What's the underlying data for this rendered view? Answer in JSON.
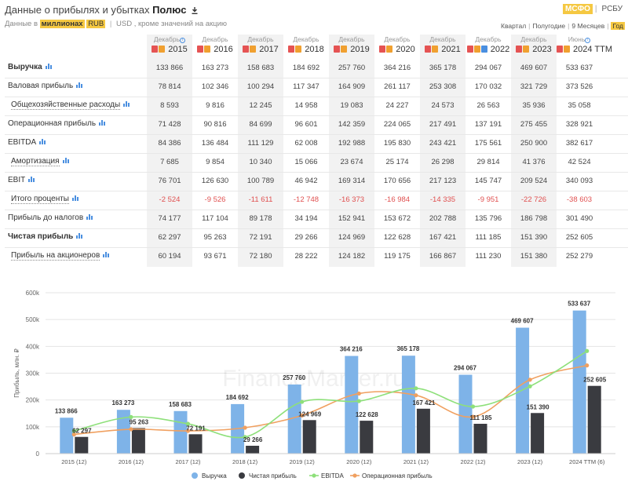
{
  "header": {
    "title_prefix": "Данные о прибылях и убытках",
    "company": "Полюс",
    "sub_prefix": "Данные в",
    "units": "миллионах",
    "currency": "RUB",
    "currency_alt": "USD",
    "sub_suffix": ", кроме значений на акцию"
  },
  "standards": {
    "active": "МСФО",
    "inactive": "РСБУ"
  },
  "periods": {
    "quarter": "Квартал",
    "half": "Полугодие",
    "nine": "9 Месяцев",
    "year": "Год"
  },
  "columns": [
    {
      "month": "Декабрь",
      "year": "2015",
      "info": true
    },
    {
      "month": "Декабрь",
      "year": "2016"
    },
    {
      "month": "Декабрь",
      "year": "2017"
    },
    {
      "month": "Декабрь",
      "year": "2018"
    },
    {
      "month": "Декабрь",
      "year": "2019"
    },
    {
      "month": "Декабрь",
      "year": "2020"
    },
    {
      "month": "Декабрь",
      "year": "2021"
    },
    {
      "month": "Декабрь",
      "year": "2022"
    },
    {
      "month": "Декабрь",
      "year": "2023"
    },
    {
      "month": "Июнь",
      "year": "2024 TTM",
      "info": true
    }
  ],
  "rows": [
    {
      "label": "Выручка",
      "bold": true,
      "values": [
        "133 866",
        "163 273",
        "158 683",
        "184 692",
        "257 760",
        "364 216",
        "365 178",
        "294 067",
        "469 607",
        "533 637"
      ]
    },
    {
      "label": "Валовая прибыль",
      "values": [
        "78 814",
        "102 346",
        "100 294",
        "117 347",
        "164 909",
        "261 117",
        "253 308",
        "170 032",
        "321 729",
        "373 526"
      ]
    },
    {
      "label": "Общехозяйственные расходы",
      "dotted": true,
      "values": [
        "8 593",
        "9 816",
        "12 245",
        "14 958",
        "19 083",
        "24 227",
        "24 573",
        "26 563",
        "35 936",
        "35 058"
      ]
    },
    {
      "label": "Операционная прибыль",
      "values": [
        "71 428",
        "90 816",
        "84 699",
        "96 601",
        "142 359",
        "224 065",
        "217 491",
        "137 191",
        "275 455",
        "328 921"
      ]
    },
    {
      "label": "EBITDA",
      "values": [
        "84 386",
        "136 484",
        "111 129",
        "62 008",
        "192 988",
        "195 830",
        "243 421",
        "175 561",
        "250 900",
        "382 617"
      ]
    },
    {
      "label": "Амортизация",
      "dotted": true,
      "values": [
        "7 685",
        "9 854",
        "10 340",
        "15 066",
        "23 674",
        "25 174",
        "26 298",
        "29 814",
        "41 376",
        "42 524"
      ]
    },
    {
      "label": "EBIT",
      "values": [
        "76 701",
        "126 630",
        "100 789",
        "46 942",
        "169 314",
        "170 656",
        "217 123",
        "145 747",
        "209 524",
        "340 093"
      ]
    },
    {
      "label": "Итого проценты",
      "dotted": true,
      "neg": true,
      "values": [
        "-2 524",
        "-9 526",
        "-11 611",
        "-12 748",
        "-16 373",
        "-16 984",
        "-14 335",
        "-9 951",
        "-22 726",
        "-38 603"
      ]
    },
    {
      "label": "Прибыль до налогов",
      "values": [
        "74 177",
        "117 104",
        "89 178",
        "34 194",
        "152 941",
        "153 672",
        "202 788",
        "135 796",
        "186 798",
        "301 490"
      ]
    },
    {
      "label": "Чистая прибыль",
      "bold": true,
      "values": [
        "62 297",
        "95 263",
        "72 191",
        "29 266",
        "124 969",
        "122 628",
        "167 421",
        "111 185",
        "151 390",
        "252 605"
      ]
    },
    {
      "label": "Прибыль на акционеров",
      "dotted": true,
      "values": [
        "60 194",
        "93 671",
        "72 180",
        "28 222",
        "124 182",
        "119 175",
        "166 867",
        "111 230",
        "151 380",
        "252 279"
      ]
    }
  ],
  "chart_data": {
    "type": "bar",
    "ylabel": "Прибыль, млн. ₽",
    "ylim": [
      0,
      600000
    ],
    "yticks": [
      "0",
      "100k",
      "200k",
      "300k",
      "400k",
      "500k",
      "600k"
    ],
    "grid": true,
    "legend_position": "bottom",
    "watermark": "FinanceMarker.ru",
    "categories": [
      "2015 (12)",
      "2016 (12)",
      "2017 (12)",
      "2018 (12)",
      "2019 (12)",
      "2020 (12)",
      "2021 (12)",
      "2022 (12)",
      "2023 (12)",
      "2024 TTM (6)"
    ],
    "series": [
      {
        "name": "Выручка",
        "kind": "bar",
        "color": "#7eb3e8",
        "values": [
          133866,
          163273,
          158683,
          184692,
          257760,
          364216,
          365178,
          294067,
          469607,
          533637
        ],
        "labels": [
          "133 866",
          "163 273",
          "158 683",
          "184 692",
          "257 760",
          "364 216",
          "365 178",
          "294 067",
          "469 607",
          "533 637"
        ]
      },
      {
        "name": "Чистая прибыль",
        "kind": "bar",
        "color": "#3a3b40",
        "values": [
          62297,
          95263,
          72191,
          29266,
          124969,
          122628,
          167421,
          111185,
          151390,
          252605
        ],
        "labels": [
          "62 297",
          "95 263",
          "72 191",
          "29 266",
          "124 969",
          "122 628",
          "167 421",
          "111 185",
          "151 390",
          "252 605"
        ]
      },
      {
        "name": "EBITDA",
        "kind": "line",
        "color": "#8ee07a",
        "values": [
          84386,
          136484,
          111129,
          62008,
          192988,
          195830,
          243421,
          175561,
          250900,
          382617
        ]
      },
      {
        "name": "Операционная прибыль",
        "kind": "line",
        "color": "#f0a060",
        "values": [
          71428,
          90816,
          84699,
          96601,
          142359,
          224065,
          217491,
          137191,
          275455,
          328921
        ]
      }
    ]
  }
}
